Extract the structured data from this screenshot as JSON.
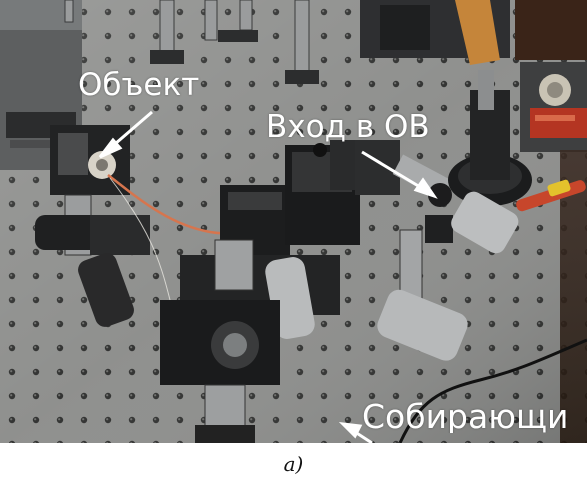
{
  "figure": {
    "labels": {
      "object": "Объект",
      "fiber_input": "Вход в ОВ",
      "collecting": "Собирающи"
    },
    "caption": "a)"
  }
}
